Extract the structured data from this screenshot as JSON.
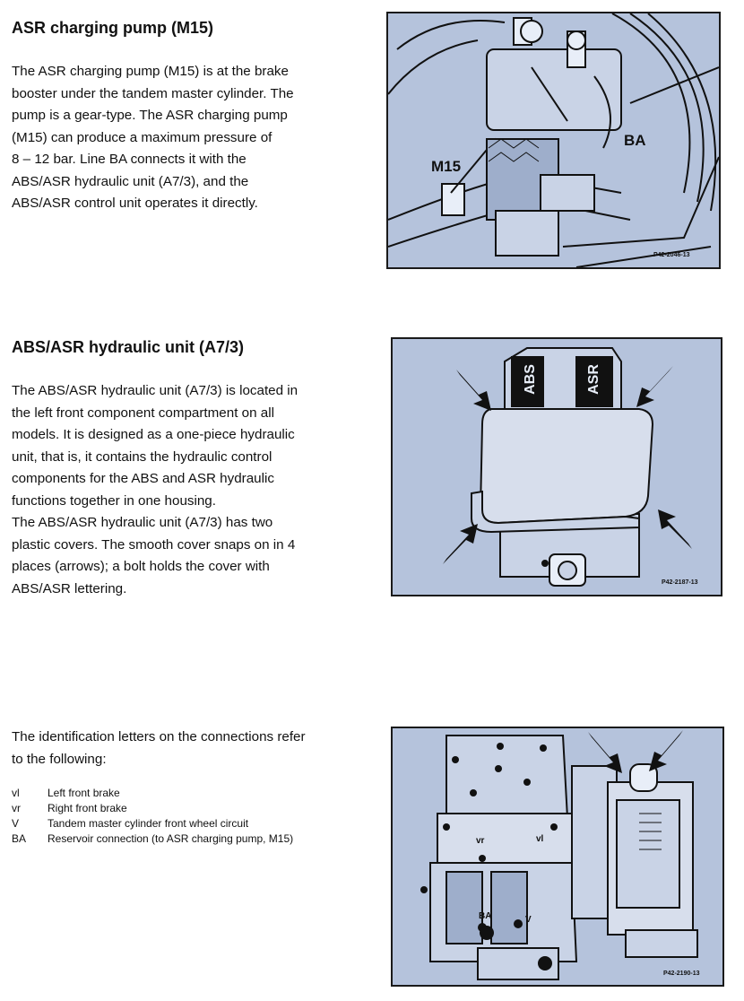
{
  "sections": [
    {
      "heading": "ASR charging pump (M15)",
      "lines": [
        "The ASR charging pump (M15) is at the brake",
        "booster under the tandem master cylinder. The",
        "pump is a gear-type. The ASR charging pump",
        "(M15) can produce a maximum pressure of",
        "8 – 12 bar. Line BA connects it with the",
        "ABS/ASR hydraulic unit (A7/3), and the",
        "ABS/ASR control unit operates it directly."
      ]
    },
    {
      "heading": "ABS/ASR hydraulic unit (A7/3)",
      "lines": [
        "The ABS/ASR hydraulic unit (A7/3) is located in",
        "the left front component compartment on all",
        "models. It is designed as a one-piece hydraulic",
        "unit, that is, it contains the hydraulic control",
        "components for the ABS and ASR hydraulic",
        "functions together in one housing.",
        "The ABS/ASR hydraulic unit (A7/3) has two",
        "plastic covers. The smooth cover snaps on in 4",
        "places (arrows); a bolt holds the cover with",
        "ABS/ASR lettering."
      ]
    },
    {
      "lines": [
        "The identification letters on the connections refer",
        "to the following:"
      ]
    }
  ],
  "legend": [
    {
      "abbr": "vl",
      "text": "Left front brake"
    },
    {
      "abbr": "vr",
      "text": "Right front brake"
    },
    {
      "abbr": "V",
      "text": "Tandem master cylinder front wheel circuit"
    },
    {
      "abbr": "BA",
      "text": "Reservoir connection (to ASR charging pump, M15)"
    }
  ],
  "figures": [
    {
      "code": "P42-2046-13",
      "labels": {
        "m15": "M15",
        "ba": "BA"
      }
    },
    {
      "code": "P42-2187-13",
      "labels": {
        "abs": "ABS",
        "asr": "ASR"
      }
    },
    {
      "code": "P42-2190-13",
      "labels": {
        "vr": "vr",
        "vl": "vl",
        "ba": "BA",
        "v": "V"
      }
    }
  ],
  "colors": {
    "figure_background": "#b5c3dc",
    "outline": "#1a1a1a"
  }
}
